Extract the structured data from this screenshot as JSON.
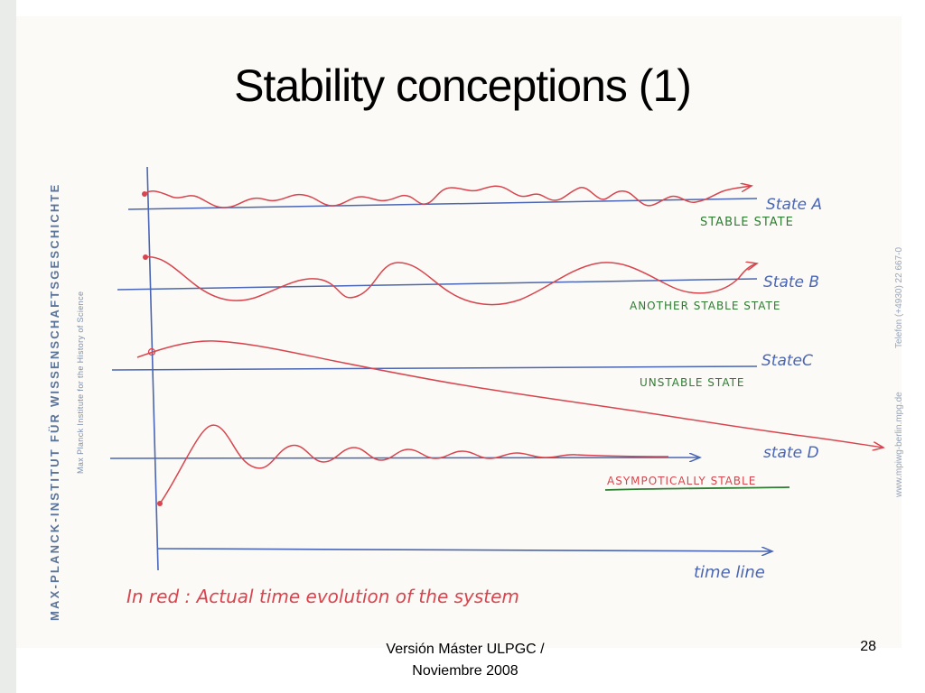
{
  "slide": {
    "title": "Stability conceptions (1)",
    "footer_line1": "Versión Máster ULPGC /",
    "footer_line2": "Noviembre 2008",
    "page_number": "28"
  },
  "branding": {
    "institute_name": "MAX-PLANCK-INSTITUT FÜR WISSENSCHAFTSGESCHICHTE",
    "institute_subtitle": "Max Planck Institute for the History of Science",
    "phone": "Telefon (+4930) 22 667-0",
    "website": "www.mpiwg-berlin.mpg.de"
  },
  "diagram": {
    "states": [
      {
        "name": "State A",
        "description": "STABLE STATE"
      },
      {
        "name": "State B",
        "description": "ANOTHER STABLE STATE"
      },
      {
        "name": "StateC",
        "description": "UNSTABLE STATE"
      },
      {
        "name": "state D",
        "description": "ASYMPOTICALLY STABLE"
      }
    ],
    "time_axis_label": "time line",
    "legend": "In red : Actual time evolution of the system",
    "colors": {
      "axis": "#4a66b4",
      "evolution": "#d8454e",
      "description": "#2e7d32",
      "underline": "#d8454e"
    }
  }
}
